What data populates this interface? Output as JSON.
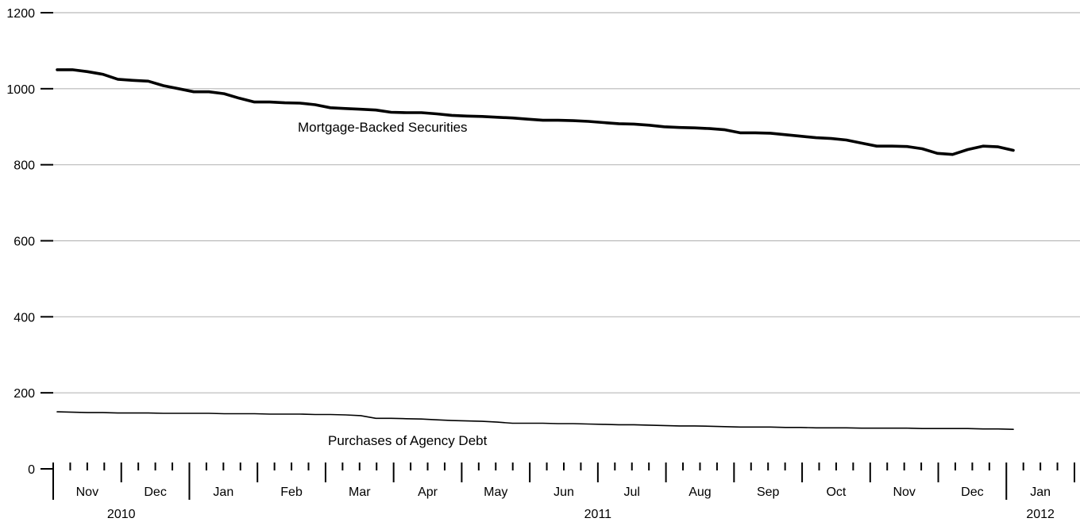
{
  "chart_data": {
    "type": "line",
    "ylim": [
      0,
      1200
    ],
    "y_ticks": [
      "0",
      "200",
      "400",
      "600",
      "800",
      "1000",
      "1200"
    ],
    "grid": true,
    "months": [
      "Nov",
      "Dec",
      "Jan",
      "Feb",
      "Mar",
      "Apr",
      "May",
      "Jun",
      "Jul",
      "Aug",
      "Sep",
      "Oct",
      "Nov",
      "Dec",
      "Jan"
    ],
    "years": [
      "2010",
      "2011",
      "2012"
    ],
    "series": [
      {
        "name": "Mortgage-Backed Securities",
        "line": "thick",
        "values": [
          1050,
          1050,
          1045,
          1038,
          1025,
          1022,
          1020,
          1008,
          1000,
          992,
          992,
          987,
          975,
          965,
          965,
          963,
          962,
          958,
          950,
          948,
          946,
          944,
          938,
          937,
          937,
          934,
          930,
          928,
          927,
          925,
          923,
          920,
          917,
          917,
          916,
          914,
          911,
          908,
          907,
          904,
          900,
          898,
          897,
          895,
          892,
          884,
          884,
          883,
          879,
          875,
          871,
          869,
          865,
          857,
          849,
          849,
          848,
          842,
          830,
          827,
          840,
          849,
          847,
          838
        ]
      },
      {
        "name": "Purchases of Agency Debt",
        "line": "thin",
        "values": [
          150,
          149,
          148,
          148,
          147,
          147,
          147,
          146,
          146,
          146,
          146,
          145,
          145,
          145,
          144,
          144,
          144,
          143,
          143,
          142,
          140,
          133,
          133,
          132,
          131,
          129,
          127,
          126,
          125,
          123,
          120,
          120,
          120,
          119,
          119,
          118,
          117,
          116,
          116,
          115,
          114,
          113,
          113,
          112,
          111,
          110,
          110,
          110,
          109,
          109,
          108,
          108,
          108,
          107,
          107,
          107,
          107,
          106,
          106,
          106,
          106,
          105,
          105,
          104
        ]
      }
    ]
  }
}
